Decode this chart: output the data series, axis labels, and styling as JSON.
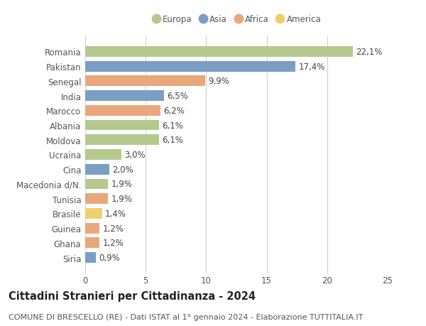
{
  "categories": [
    "Romania",
    "Pakistan",
    "Senegal",
    "India",
    "Marocco",
    "Albania",
    "Moldova",
    "Ucraina",
    "Cina",
    "Macedonia d/N.",
    "Tunisia",
    "Brasile",
    "Guinea",
    "Ghana",
    "Siria"
  ],
  "values": [
    22.1,
    17.4,
    9.9,
    6.5,
    6.2,
    6.1,
    6.1,
    3.0,
    2.0,
    1.9,
    1.9,
    1.4,
    1.2,
    1.2,
    0.9
  ],
  "labels": [
    "22,1%",
    "17,4%",
    "9,9%",
    "6,5%",
    "6,2%",
    "6,1%",
    "6,1%",
    "3,0%",
    "2,0%",
    "1,9%",
    "1,9%",
    "1,4%",
    "1,2%",
    "1,2%",
    "0,9%"
  ],
  "continents": [
    "Europa",
    "Asia",
    "Africa",
    "Asia",
    "Africa",
    "Europa",
    "Europa",
    "Europa",
    "Asia",
    "Europa",
    "Africa",
    "America",
    "Africa",
    "Africa",
    "Asia"
  ],
  "continent_colors": {
    "Europa": "#b5c98e",
    "Asia": "#7a9ec4",
    "Africa": "#e8a87c",
    "America": "#f0d06e"
  },
  "legend_order": [
    "Europa",
    "Asia",
    "Africa",
    "America"
  ],
  "title_bold": "Cittadini Stranieri per Cittadinanza - 2024",
  "subtitle": "COMUNE DI BRESCELLO (RE) - Dati ISTAT al 1° gennaio 2024 - Elaborazione TUTTITALIA.IT",
  "xlim": [
    0,
    25
  ],
  "xticks": [
    0,
    5,
    10,
    15,
    20,
    25
  ],
  "background_color": "#ffffff",
  "grid_color": "#d0d0d0",
  "bar_height": 0.72,
  "label_fontsize": 8.5,
  "tick_fontsize": 8.5,
  "title_fontsize": 10.5,
  "subtitle_fontsize": 8.0
}
